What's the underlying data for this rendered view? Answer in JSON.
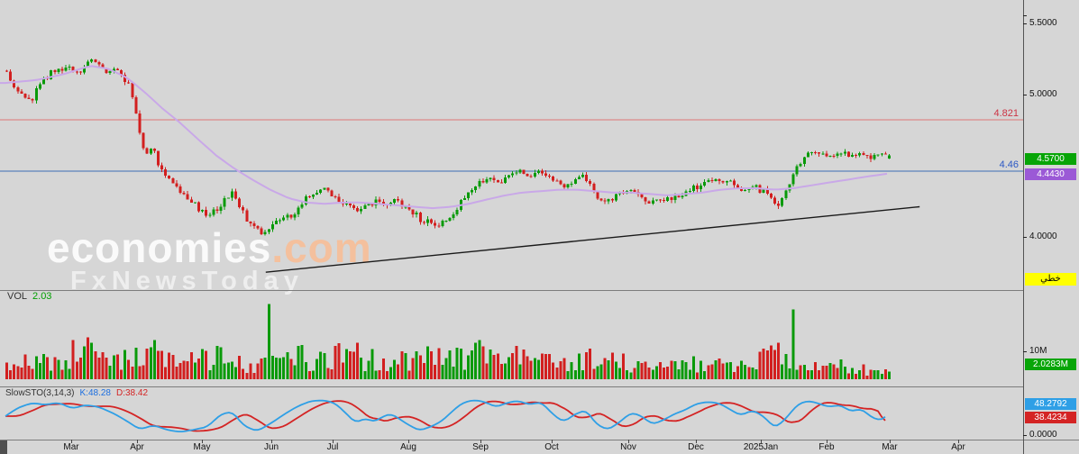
{
  "watermark": {
    "brand": "economies",
    "brand_suffix": ".com",
    "subtitle": "FxNewsToday"
  },
  "price_pane": {
    "levels": {
      "resistance": {
        "label": "4.821",
        "value": 4.821
      },
      "support": {
        "label": "4.46",
        "value": 4.46
      }
    },
    "badges": {
      "last_price": "4.5700",
      "ma_value": "4.4430",
      "scale_type": "خطي"
    },
    "axis_ticks": [
      {
        "label": "5.5000",
        "value": 5.5
      },
      {
        "label": "5.0000",
        "value": 5.0
      },
      {
        "label": "4.0000",
        "value": 4.0
      }
    ]
  },
  "volume_pane": {
    "title": "VOL",
    "current": "2.03",
    "badge": "2.0283M",
    "axis_ticks": [
      {
        "label": "10M",
        "value": 10
      }
    ]
  },
  "sto_pane": {
    "title": "SlowSTO(3,14,3)",
    "k_label": "K:48.28",
    "d_label": "D:38.42",
    "badges": {
      "k": "48.2792",
      "d": "38.4234"
    },
    "axis_ticks": [
      {
        "label": "0.0000",
        "value": 0
      }
    ]
  },
  "colors": {
    "background": "#d6d6d6",
    "candle_up": "#0a9a0a",
    "candle_down": "#d21f1f",
    "ma_line": "#c9a8e8",
    "trendline": "#1a1a1a",
    "resistance_line": "#dd7777",
    "support_line": "#3f6db5",
    "sto_k_line": "#2e9fe6",
    "sto_d_line": "#d42424",
    "badge_last_price_bg": "#07a507",
    "badge_ma_bg": "#9b59d6",
    "badge_scale_bg": "#ffff00",
    "badge_volume_bg": "#07a507",
    "badge_k_bg": "#2e9fe6",
    "badge_d_bg": "#d42424",
    "volume_value_green": "#00a000",
    "k_label_color": "#1d6fe0",
    "d_label_color": "#d42424",
    "resistance_label_color": "#cc3344",
    "support_label_color": "#2b57c4"
  },
  "chart_data": {
    "type": "candlestick",
    "title": "",
    "period": "Mar 2024 - Feb 2025, daily",
    "last_close": 4.57,
    "ma_last": 4.443,
    "volume_last_label": "2.0283M",
    "sto_k_last": 48.28,
    "sto_d_last": 38.42,
    "resistance_level": 4.821,
    "support_level": 4.46,
    "price_axis_ticks": [
      5.5,
      5.0,
      4.0
    ],
    "volume_axis_ticks_millions": [
      10
    ],
    "sto_axis_ticks": [
      0
    ],
    "scale_type": "linear (خطي)",
    "candle_count": 240,
    "seed": 11,
    "close_keypoints": [
      [
        0,
        5.17
      ],
      [
        0.009,
        5.05
      ],
      [
        0.019,
        4.98
      ],
      [
        0.027,
        4.95
      ],
      [
        0.04,
        5.1
      ],
      [
        0.055,
        5.17
      ],
      [
        0.07,
        5.2
      ],
      [
        0.081,
        5.13
      ],
      [
        0.091,
        5.22
      ],
      [
        0.101,
        5.25
      ],
      [
        0.111,
        5.15
      ],
      [
        0.122,
        5.18
      ],
      [
        0.132,
        5.12
      ],
      [
        0.139,
        5.05
      ],
      [
        0.145,
        4.88
      ],
      [
        0.152,
        4.72
      ],
      [
        0.157,
        4.58
      ],
      [
        0.165,
        4.63
      ],
      [
        0.173,
        4.5
      ],
      [
        0.18,
        4.42
      ],
      [
        0.188,
        4.36
      ],
      [
        0.198,
        4.3
      ],
      [
        0.208,
        4.26
      ],
      [
        0.219,
        4.18
      ],
      [
        0.229,
        4.15
      ],
      [
        0.239,
        4.2
      ],
      [
        0.249,
        4.28
      ],
      [
        0.257,
        4.31
      ],
      [
        0.265,
        4.2
      ],
      [
        0.272,
        4.12
      ],
      [
        0.28,
        4.06
      ],
      [
        0.29,
        4.02
      ],
      [
        0.3,
        4.08
      ],
      [
        0.311,
        4.12
      ],
      [
        0.321,
        4.15
      ],
      [
        0.331,
        4.2
      ],
      [
        0.341,
        4.28
      ],
      [
        0.351,
        4.32
      ],
      [
        0.36,
        4.35
      ],
      [
        0.367,
        4.3
      ],
      [
        0.377,
        4.25
      ],
      [
        0.387,
        4.22
      ],
      [
        0.397,
        4.18
      ],
      [
        0.408,
        4.22
      ],
      [
        0.418,
        4.24
      ],
      [
        0.428,
        4.22
      ],
      [
        0.438,
        4.25
      ],
      [
        0.448,
        4.23
      ],
      [
        0.459,
        4.18
      ],
      [
        0.469,
        4.12
      ],
      [
        0.479,
        4.1
      ],
      [
        0.489,
        4.08
      ],
      [
        0.5,
        4.12
      ],
      [
        0.51,
        4.2
      ],
      [
        0.52,
        4.28
      ],
      [
        0.53,
        4.34
      ],
      [
        0.54,
        4.4
      ],
      [
        0.551,
        4.42
      ],
      [
        0.561,
        4.38
      ],
      [
        0.571,
        4.42
      ],
      [
        0.581,
        4.45
      ],
      [
        0.591,
        4.42
      ],
      [
        0.602,
        4.47
      ],
      [
        0.612,
        4.44
      ],
      [
        0.622,
        4.38
      ],
      [
        0.632,
        4.35
      ],
      [
        0.643,
        4.4
      ],
      [
        0.653,
        4.42
      ],
      [
        0.663,
        4.34
      ],
      [
        0.67,
        4.28
      ],
      [
        0.678,
        4.25
      ],
      [
        0.688,
        4.28
      ],
      [
        0.699,
        4.3
      ],
      [
        0.709,
        4.32
      ],
      [
        0.719,
        4.28
      ],
      [
        0.727,
        4.25
      ],
      [
        0.735,
        4.24
      ],
      [
        0.745,
        4.26
      ],
      [
        0.755,
        4.28
      ],
      [
        0.765,
        4.3
      ],
      [
        0.775,
        4.33
      ],
      [
        0.785,
        4.35
      ],
      [
        0.796,
        4.38
      ],
      [
        0.806,
        4.4
      ],
      [
        0.816,
        4.38
      ],
      [
        0.826,
        4.36
      ],
      [
        0.837,
        4.33
      ],
      [
        0.847,
        4.35
      ],
      [
        0.857,
        4.32
      ],
      [
        0.867,
        4.28
      ],
      [
        0.874,
        4.22
      ],
      [
        0.883,
        4.31
      ],
      [
        0.891,
        4.43
      ],
      [
        0.899,
        4.52
      ],
      [
        0.908,
        4.58
      ],
      [
        0.918,
        4.6
      ],
      [
        0.928,
        4.58
      ],
      [
        0.939,
        4.57
      ],
      [
        0.949,
        4.59
      ],
      [
        0.959,
        4.56
      ],
      [
        0.969,
        4.58
      ],
      [
        0.98,
        4.55
      ],
      [
        0.99,
        4.58
      ],
      [
        1,
        4.57
      ]
    ],
    "ma_keypoints": [
      [
        0,
        5.08
      ],
      [
        0.035,
        5.1
      ],
      [
        0.065,
        5.14
      ],
      [
        0.096,
        5.2
      ],
      [
        0.116,
        5.18
      ],
      [
        0.137,
        5.12
      ],
      [
        0.157,
        5.02
      ],
      [
        0.178,
        4.9
      ],
      [
        0.198,
        4.8
      ],
      [
        0.219,
        4.68
      ],
      [
        0.239,
        4.57
      ],
      [
        0.259,
        4.48
      ],
      [
        0.28,
        4.4
      ],
      [
        0.3,
        4.33
      ],
      [
        0.321,
        4.27
      ],
      [
        0.341,
        4.24
      ],
      [
        0.362,
        4.23
      ],
      [
        0.382,
        4.24
      ],
      [
        0.402,
        4.24
      ],
      [
        0.423,
        4.23
      ],
      [
        0.443,
        4.22
      ],
      [
        0.464,
        4.21
      ],
      [
        0.484,
        4.2
      ],
      [
        0.505,
        4.21
      ],
      [
        0.525,
        4.23
      ],
      [
        0.545,
        4.26
      ],
      [
        0.566,
        4.29
      ],
      [
        0.586,
        4.31
      ],
      [
        0.607,
        4.32
      ],
      [
        0.627,
        4.33
      ],
      [
        0.648,
        4.33
      ],
      [
        0.668,
        4.32
      ],
      [
        0.688,
        4.31
      ],
      [
        0.709,
        4.31
      ],
      [
        0.729,
        4.3
      ],
      [
        0.75,
        4.29
      ],
      [
        0.77,
        4.3
      ],
      [
        0.79,
        4.31
      ],
      [
        0.811,
        4.33
      ],
      [
        0.831,
        4.34
      ],
      [
        0.852,
        4.34
      ],
      [
        0.872,
        4.33
      ],
      [
        0.893,
        4.34
      ],
      [
        0.913,
        4.36
      ],
      [
        0.933,
        4.38
      ],
      [
        0.954,
        4.4
      ],
      [
        0.974,
        4.42
      ],
      [
        1,
        4.443
      ]
    ],
    "trendline": {
      "t1": 0.295,
      "p1": 3.75,
      "t2": 1.036,
      "p2": 4.21
    },
    "volume_envelope_millions": [
      [
        0,
        5
      ],
      [
        0.04,
        7
      ],
      [
        0.09,
        11
      ],
      [
        0.12,
        7
      ],
      [
        0.15,
        9
      ],
      [
        0.17,
        10
      ],
      [
        0.2,
        6
      ],
      [
        0.24,
        8
      ],
      [
        0.28,
        6
      ],
      [
        0.3,
        7
      ],
      [
        0.33,
        8
      ],
      [
        0.36,
        9
      ],
      [
        0.4,
        8
      ],
      [
        0.44,
        6
      ],
      [
        0.47,
        8
      ],
      [
        0.5,
        9
      ],
      [
        0.53,
        9
      ],
      [
        0.56,
        7
      ],
      [
        0.6,
        7
      ],
      [
        0.63,
        6
      ],
      [
        0.66,
        7
      ],
      [
        0.7,
        6
      ],
      [
        0.73,
        5
      ],
      [
        0.76,
        6
      ],
      [
        0.79,
        7
      ],
      [
        0.82,
        6
      ],
      [
        0.85,
        8
      ],
      [
        0.88,
        9
      ],
      [
        0.91,
        7
      ],
      [
        0.94,
        5
      ],
      [
        0.97,
        4
      ],
      [
        1,
        2
      ]
    ],
    "volume_spikes": [
      [
        0.091,
        15,
        "down"
      ],
      [
        0.097,
        13,
        "up"
      ],
      [
        0.168,
        14,
        "up"
      ],
      [
        0.24,
        12,
        "up"
      ],
      [
        0.295,
        27,
        "up"
      ],
      [
        0.397,
        13,
        "down"
      ],
      [
        0.536,
        14,
        "up"
      ],
      [
        0.576,
        12,
        "down"
      ],
      [
        0.663,
        11,
        "down"
      ],
      [
        0.857,
        11,
        "down"
      ],
      [
        0.893,
        25,
        "up"
      ]
    ],
    "sto_k_keypoints": [
      [
        0,
        50
      ],
      [
        0.014,
        72
      ],
      [
        0.03,
        85
      ],
      [
        0.045,
        80
      ],
      [
        0.06,
        86
      ],
      [
        0.076,
        70
      ],
      [
        0.091,
        80
      ],
      [
        0.106,
        74
      ],
      [
        0.122,
        58
      ],
      [
        0.137,
        38
      ],
      [
        0.152,
        15
      ],
      [
        0.168,
        26
      ],
      [
        0.183,
        14
      ],
      [
        0.198,
        8
      ],
      [
        0.213,
        14
      ],
      [
        0.229,
        22
      ],
      [
        0.244,
        55
      ],
      [
        0.257,
        62
      ],
      [
        0.27,
        25
      ],
      [
        0.285,
        10
      ],
      [
        0.3,
        30
      ],
      [
        0.316,
        55
      ],
      [
        0.331,
        76
      ],
      [
        0.346,
        90
      ],
      [
        0.362,
        92
      ],
      [
        0.374,
        84
      ],
      [
        0.387,
        55
      ],
      [
        0.397,
        32
      ],
      [
        0.408,
        45
      ],
      [
        0.418,
        34
      ],
      [
        0.428,
        50
      ],
      [
        0.438,
        56
      ],
      [
        0.448,
        40
      ],
      [
        0.459,
        24
      ],
      [
        0.469,
        12
      ],
      [
        0.482,
        22
      ],
      [
        0.494,
        36
      ],
      [
        0.505,
        60
      ],
      [
        0.517,
        84
      ],
      [
        0.53,
        93
      ],
      [
        0.543,
        88
      ],
      [
        0.556,
        74
      ],
      [
        0.568,
        85
      ],
      [
        0.581,
        91
      ],
      [
        0.594,
        80
      ],
      [
        0.607,
        88
      ],
      [
        0.619,
        58
      ],
      [
        0.632,
        34
      ],
      [
        0.646,
        56
      ],
      [
        0.658,
        66
      ],
      [
        0.67,
        28
      ],
      [
        0.683,
        14
      ],
      [
        0.697,
        36
      ],
      [
        0.709,
        60
      ],
      [
        0.721,
        50
      ],
      [
        0.733,
        28
      ],
      [
        0.746,
        40
      ],
      [
        0.758,
        56
      ],
      [
        0.77,
        66
      ],
      [
        0.782,
        82
      ],
      [
        0.796,
        88
      ],
      [
        0.809,
        84
      ],
      [
        0.821,
        68
      ],
      [
        0.833,
        52
      ],
      [
        0.847,
        66
      ],
      [
        0.86,
        48
      ],
      [
        0.872,
        18
      ],
      [
        0.885,
        45
      ],
      [
        0.897,
        80
      ],
      [
        0.909,
        91
      ],
      [
        0.921,
        84
      ],
      [
        0.933,
        74
      ],
      [
        0.946,
        80
      ],
      [
        0.958,
        62
      ],
      [
        0.97,
        70
      ],
      [
        0.983,
        44
      ],
      [
        0.993,
        40
      ],
      [
        1,
        48.28
      ]
    ],
    "x_months": [
      {
        "label": "Mar",
        "pos": 0.07
      },
      {
        "label": "Apr",
        "pos": 0.134
      },
      {
        "label": "May",
        "pos": 0.197
      },
      {
        "label": "Jun",
        "pos": 0.265
      },
      {
        "label": "Jul",
        "pos": 0.325
      },
      {
        "label": "Aug",
        "pos": 0.399
      },
      {
        "label": "Sep",
        "pos": 0.47
      },
      {
        "label": "Oct",
        "pos": 0.539
      },
      {
        "label": "Nov",
        "pos": 0.614
      },
      {
        "label": "Dec",
        "pos": 0.68
      },
      {
        "label": "2025Jan",
        "pos": 0.744
      },
      {
        "label": "Feb",
        "pos": 0.808
      },
      {
        "label": "Mar",
        "pos": 0.87
      },
      {
        "label": "Apr",
        "pos": 0.937
      }
    ]
  }
}
